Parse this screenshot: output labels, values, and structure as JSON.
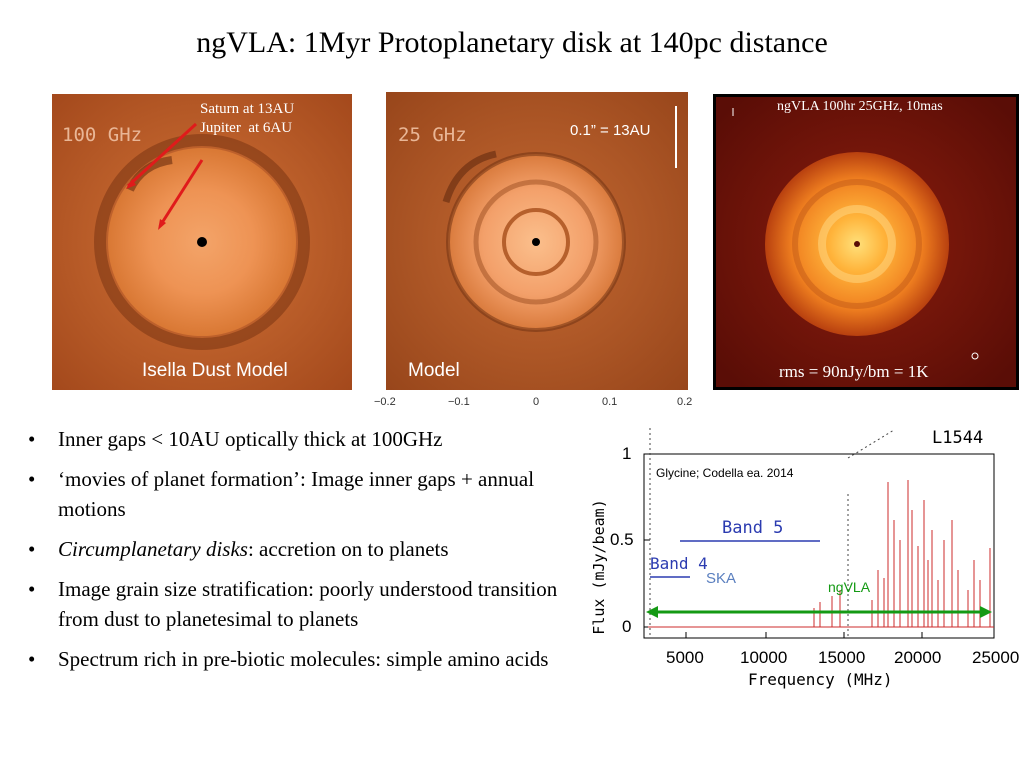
{
  "title": "ngVLA: 1Myr Protoplanetary disk at 140pc distance",
  "panels": {
    "p1": {
      "freq": "100 GHz",
      "planet_label_1": "Saturn at 13AU",
      "planet_label_2": "Jupiter  at 6AU",
      "caption": "Isella Dust Model"
    },
    "p2": {
      "freq": "25 GHz",
      "scale": "0.1” = 13AU",
      "caption": "Model"
    },
    "p3": {
      "header": "ngVLA 100hr 25GHz, 10mas",
      "rms": "rms = 90nJy/bm = 1K"
    },
    "axis_ticks": [
      "−0.2",
      "−0.1",
      "0",
      "0.1",
      "0.2"
    ]
  },
  "bullets": [
    {
      "text": "Inner gaps < 10AU optically thick at 100GHz"
    },
    {
      "text": "‘movies of planet formation’: Image inner gaps + annual motions"
    },
    {
      "italic": "Circumplanetary disks",
      "text": ": accretion on to planets"
    },
    {
      "text": "Image grain size stratification: poorly understood transition from dust to planetesimal to planets"
    },
    {
      "text": "Spectrum rich in pre-biotic molecules: simple amino acids"
    }
  ],
  "spectrum": {
    "source": "L1544",
    "annotation": "Glycine; Codella ea. 2014",
    "band5": "Band 5",
    "band4": "Band 4",
    "ska": "SKA",
    "ngvla": "ngVLA",
    "ylabel": "Flux (mJy/beam)",
    "xlabel": "Frequency (MHz)",
    "yticks": [
      "1",
      "0.5",
      "0"
    ],
    "xticks": [
      "5000",
      "10000",
      "15000",
      "20000",
      "25000"
    ],
    "line_color": "#cc2b2b",
    "arrow_color": "#149a14",
    "band_color": "#2b3bb0"
  }
}
